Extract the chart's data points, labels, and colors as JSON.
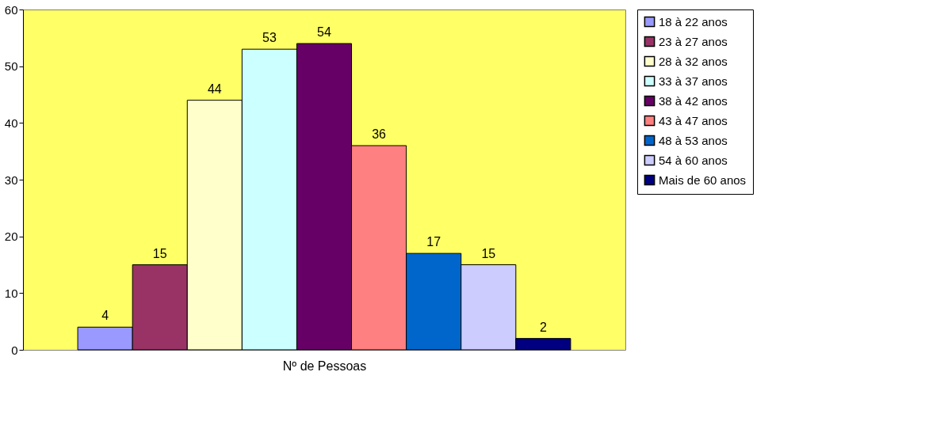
{
  "chart_data": {
    "type": "bar",
    "categories": [
      null
    ],
    "xlabel": "Nº de Pessoas",
    "series": [
      {
        "name": "18 à 22 anos",
        "color": "#9999ff",
        "values": [
          4
        ]
      },
      {
        "name": "23 à 27 anos",
        "color": "#993366",
        "values": [
          15
        ]
      },
      {
        "name": "28 à 32 anos",
        "color": "#ffffcc",
        "values": [
          44
        ]
      },
      {
        "name": "33 à 37 anos",
        "color": "#ccffff",
        "values": [
          53
        ]
      },
      {
        "name": "38 à 42 anos",
        "color": "#660066",
        "values": [
          54
        ]
      },
      {
        "name": "43 à 47 anos",
        "color": "#ff8080",
        "values": [
          36
        ]
      },
      {
        "name": "48 à 53 anos",
        "color": "#0066cc",
        "values": [
          17
        ]
      },
      {
        "name": "54 à 60 anos",
        "color": "#ccccff",
        "values": [
          15
        ]
      },
      {
        "name": "Mais de 60 anos",
        "color": "#000080",
        "values": [
          2
        ]
      }
    ],
    "ylim": [
      0,
      60
    ],
    "yticks": [
      0,
      10,
      20,
      30,
      40,
      50,
      60
    ],
    "tick_labels": "y",
    "grid": false,
    "legend": "right",
    "data_labels": true
  }
}
